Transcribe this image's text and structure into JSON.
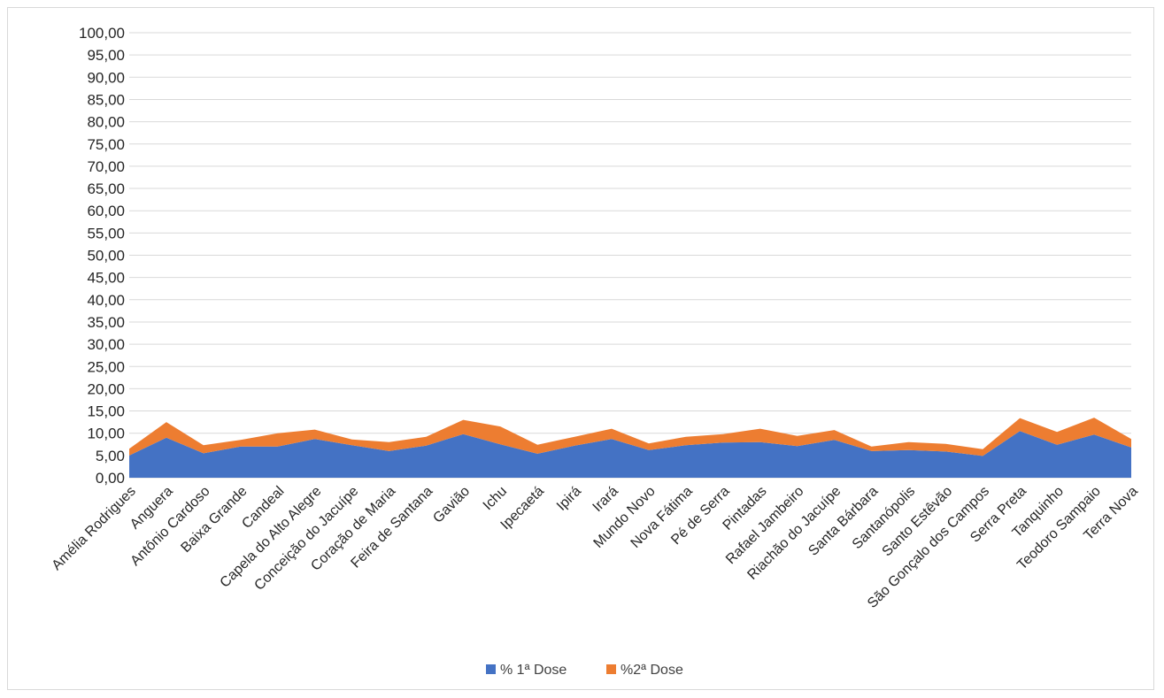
{
  "chart_data": {
    "type": "area",
    "stacked": true,
    "categories": [
      "Amélia Rodrigues",
      "Anguera",
      "Antônio Cardoso",
      "Baixa Grande",
      "Candeal",
      "Capela do Alto Alegre",
      "Conceição do Jacuípe",
      "Coração de Maria",
      "Feira de Santana",
      "Gavião",
      "Ichu",
      "Ipecaetá",
      "Ipirá",
      "Irará",
      "Mundo Novo",
      "Nova Fátima",
      "Pé de Serra",
      "Pintadas",
      "Rafael Jambeiro",
      "Riachão do Jacuípe",
      "Santa Bárbara",
      "Santanópolis",
      "Santo Estêvão",
      "São Gonçalo dos Campos",
      "Serra Preta",
      "Tanquinho",
      "Teodoro Sampaio",
      "Terra Nova"
    ],
    "series": [
      {
        "name": "% 1ª Dose",
        "color": "#4472C4",
        "values": [
          5.0,
          9.0,
          5.5,
          7.0,
          7.0,
          8.7,
          7.3,
          6.0,
          7.2,
          9.8,
          7.5,
          5.4,
          7.2,
          8.7,
          6.2,
          7.3,
          7.9,
          8.0,
          7.1,
          8.5,
          6.0,
          6.2,
          5.9,
          4.9,
          10.5,
          7.4,
          9.7,
          6.8
        ]
      },
      {
        "name": "%2ª Dose",
        "color": "#ED7D31",
        "values": [
          1.5,
          3.5,
          1.8,
          1.5,
          3.0,
          2.1,
          1.3,
          2.0,
          2.0,
          3.2,
          4.0,
          2.0,
          2.0,
          2.3,
          1.5,
          1.9,
          1.9,
          3.0,
          2.3,
          2.2,
          1.0,
          1.8,
          1.7,
          1.5,
          2.9,
          2.9,
          3.8,
          1.9
        ]
      }
    ],
    "y_ticks": [
      "0,00",
      "5,00",
      "10,00",
      "15,00",
      "20,00",
      "25,00",
      "30,00",
      "35,00",
      "40,00",
      "45,00",
      "50,00",
      "55,00",
      "60,00",
      "65,00",
      "70,00",
      "75,00",
      "80,00",
      "85,00",
      "90,00",
      "95,00",
      "100,00"
    ],
    "ylim": [
      0,
      100
    ],
    "grid": true,
    "legend_position": "bottom"
  }
}
